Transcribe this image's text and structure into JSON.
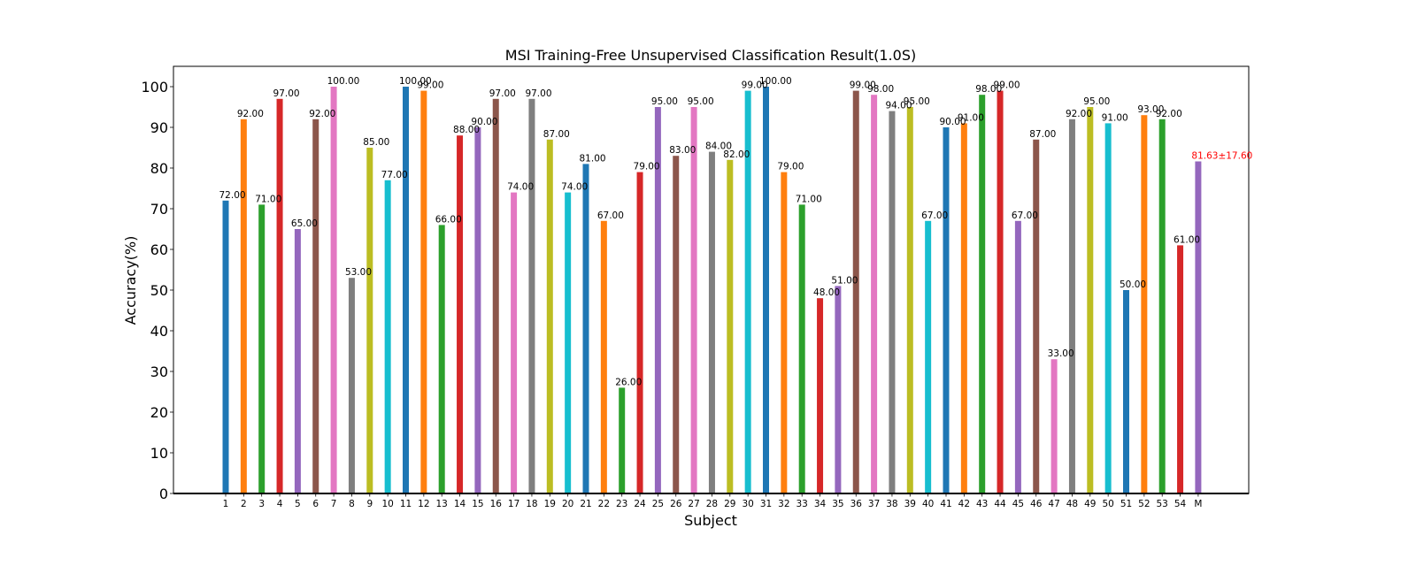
{
  "chart_data": {
    "type": "bar",
    "title": "MSI Training-Free Unsupervised Classification Result(1.0S)",
    "xlabel": "Subject",
    "ylabel": "Accuracy(%)",
    "ylim": [
      0,
      105
    ],
    "yticks": [
      0,
      10,
      20,
      30,
      40,
      50,
      60,
      70,
      80,
      90,
      100
    ],
    "grid": false,
    "categories": [
      "1",
      "2",
      "3",
      "4",
      "5",
      "6",
      "7",
      "8",
      "9",
      "10",
      "11",
      "12",
      "13",
      "14",
      "15",
      "16",
      "17",
      "18",
      "19",
      "20",
      "21",
      "22",
      "23",
      "24",
      "25",
      "26",
      "27",
      "28",
      "29",
      "30",
      "31",
      "32",
      "33",
      "34",
      "35",
      "36",
      "37",
      "38",
      "39",
      "40",
      "41",
      "42",
      "43",
      "44",
      "45",
      "46",
      "47",
      "48",
      "49",
      "50",
      "51",
      "52",
      "53",
      "54",
      "M"
    ],
    "values": [
      72,
      92,
      71,
      97,
      65,
      92,
      100,
      53,
      85,
      77,
      100,
      99,
      66,
      88,
      90,
      97,
      74,
      97,
      87,
      74,
      81,
      67,
      26,
      79,
      95,
      83,
      95,
      84,
      82,
      99,
      100,
      79,
      71,
      48,
      51,
      99,
      98,
      94,
      95,
      67,
      90,
      91,
      98,
      99,
      67,
      87,
      33,
      92,
      95,
      91,
      50,
      93,
      92,
      61,
      81.63
    ],
    "labels": [
      "72.00",
      "92.00",
      "71.00",
      "97.00",
      "65.00",
      "92.00",
      "100.00",
      "53.00",
      "85.00",
      "77.00",
      "100.00",
      "99.00",
      "66.00",
      "88.00",
      "90.00",
      "97.00",
      "74.00",
      "97.00",
      "87.00",
      "74.00",
      "81.00",
      "67.00",
      "26.00",
      "79.00",
      "95.00",
      "83.00",
      "95.00",
      "84.00",
      "82.00",
      "99.00",
      "100.00",
      "79.00",
      "71.00",
      "48.00",
      "51.00",
      "99.00",
      "98.00",
      "94.00",
      "95.00",
      "67.00",
      "90.00",
      "91.00",
      "98.00",
      "99.00",
      "67.00",
      "87.00",
      "33.00",
      "92.00",
      "95.00",
      "91.00",
      "50.00",
      "93.00",
      "92.00",
      "61.00",
      "81.63±17.60"
    ],
    "label_colors": {
      "default": "#000000",
      "mean": "#ff0000"
    },
    "colors": [
      "#1f77b4",
      "#ff7f0e",
      "#2ca02c",
      "#d62728",
      "#9467bd",
      "#8c564b",
      "#e377c2",
      "#7f7f7f",
      "#bcbd22",
      "#17becf"
    ]
  }
}
